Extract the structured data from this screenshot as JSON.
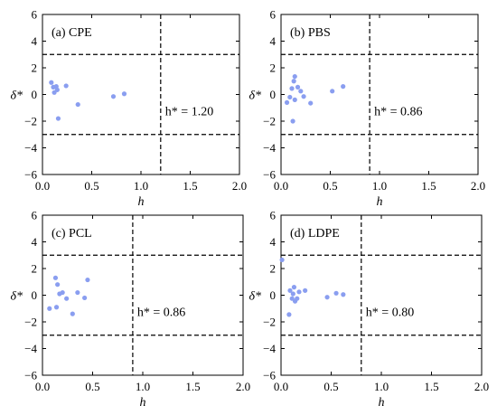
{
  "marker_color": "#8a9ef0",
  "chart_data": [
    {
      "type": "scatter",
      "panel_label": "(a) CPE",
      "xlabel": "h",
      "ylabel": "δ*",
      "xlim": [
        0.0,
        2.0
      ],
      "ylim": [
        -6,
        6
      ],
      "xticks": [
        "0.0",
        "0.5",
        "1.0",
        "1.5",
        "2.0"
      ],
      "yticks": [
        "6",
        "4",
        "2",
        "0",
        "−2",
        "−4",
        "−6"
      ],
      "h_star_label": "h* = 1.20",
      "h_star": 1.2,
      "y_limits": [
        3,
        -3
      ],
      "points": [
        {
          "x": 0.09,
          "y": 0.9
        },
        {
          "x": 0.11,
          "y": 0.55
        },
        {
          "x": 0.12,
          "y": 0.15
        },
        {
          "x": 0.14,
          "y": 0.6
        },
        {
          "x": 0.15,
          "y": 0.35
        },
        {
          "x": 0.16,
          "y": -1.8
        },
        {
          "x": 0.24,
          "y": 0.65
        },
        {
          "x": 0.36,
          "y": -0.75
        },
        {
          "x": 0.72,
          "y": -0.15
        },
        {
          "x": 0.83,
          "y": 0.05
        }
      ]
    },
    {
      "type": "scatter",
      "panel_label": "(b) PBS",
      "xlabel": "h",
      "ylabel": "δ*",
      "xlim": [
        0.0,
        2.0
      ],
      "ylim": [
        -6,
        6
      ],
      "xticks": [
        "0.0",
        "0.5",
        "1.0",
        "1.5",
        "2.0"
      ],
      "yticks": [
        "6",
        "4",
        "2",
        "0",
        "−2",
        "−4",
        "−6"
      ],
      "h_star_label": "h* = 0.86",
      "h_star": 0.9,
      "y_limits": [
        3,
        -3
      ],
      "points": [
        {
          "x": 0.06,
          "y": -0.6
        },
        {
          "x": 0.09,
          "y": -0.2
        },
        {
          "x": 0.11,
          "y": 0.45
        },
        {
          "x": 0.12,
          "y": -2.0
        },
        {
          "x": 0.13,
          "y": 1.0
        },
        {
          "x": 0.14,
          "y": 1.35
        },
        {
          "x": 0.14,
          "y": -0.4
        },
        {
          "x": 0.17,
          "y": 0.55
        },
        {
          "x": 0.2,
          "y": 0.25
        },
        {
          "x": 0.23,
          "y": -0.15
        },
        {
          "x": 0.3,
          "y": -0.65
        },
        {
          "x": 0.52,
          "y": 0.25
        },
        {
          "x": 0.63,
          "y": 0.6
        }
      ]
    },
    {
      "type": "scatter",
      "panel_label": "(c) PCL",
      "xlabel": "h",
      "ylabel": "δ*",
      "xlim": [
        0.0,
        2.0
      ],
      "ylim": [
        -6,
        6
      ],
      "xticks": [
        "0.0",
        "0.5",
        "1.0",
        "1.5",
        "2.0"
      ],
      "yticks": [
        "6",
        "4",
        "2",
        "0",
        "−2",
        "−4",
        "−6"
      ],
      "h_star_label": "h* = 0.86",
      "h_star": 0.9,
      "y_limits": [
        3,
        -3
      ],
      "points": [
        {
          "x": 0.07,
          "y": -1.0
        },
        {
          "x": 0.13,
          "y": 1.3
        },
        {
          "x": 0.14,
          "y": -0.9
        },
        {
          "x": 0.15,
          "y": 0.8
        },
        {
          "x": 0.17,
          "y": 0.1
        },
        {
          "x": 0.2,
          "y": 0.2
        },
        {
          "x": 0.24,
          "y": -0.25
        },
        {
          "x": 0.3,
          "y": -1.4
        },
        {
          "x": 0.35,
          "y": 0.2
        },
        {
          "x": 0.42,
          "y": -0.2
        },
        {
          "x": 0.45,
          "y": 1.15
        }
      ]
    },
    {
      "type": "scatter",
      "panel_label": "(d) LDPE",
      "xlabel": "h",
      "ylabel": "δ*",
      "xlim": [
        0.0,
        2.0
      ],
      "ylim": [
        -6,
        6
      ],
      "xticks": [
        "0.0",
        "0.5",
        "1.0",
        "1.5",
        "2.0"
      ],
      "yticks": [
        "6",
        "4",
        "2",
        "0",
        "−2",
        "−4",
        "−6"
      ],
      "h_star_label": "h* = 0.80",
      "h_star": 0.8,
      "y_limits": [
        3,
        -3
      ],
      "points": [
        {
          "x": 0.01,
          "y": 2.65
        },
        {
          "x": 0.08,
          "y": -1.45
        },
        {
          "x": 0.09,
          "y": 0.35
        },
        {
          "x": 0.11,
          "y": -0.25
        },
        {
          "x": 0.12,
          "y": 0.1
        },
        {
          "x": 0.13,
          "y": 0.6
        },
        {
          "x": 0.14,
          "y": -0.45
        },
        {
          "x": 0.16,
          "y": -0.25
        },
        {
          "x": 0.18,
          "y": 0.25
        },
        {
          "x": 0.24,
          "y": 0.35
        },
        {
          "x": 0.46,
          "y": -0.15
        },
        {
          "x": 0.55,
          "y": 0.15
        },
        {
          "x": 0.62,
          "y": 0.05
        }
      ]
    }
  ]
}
